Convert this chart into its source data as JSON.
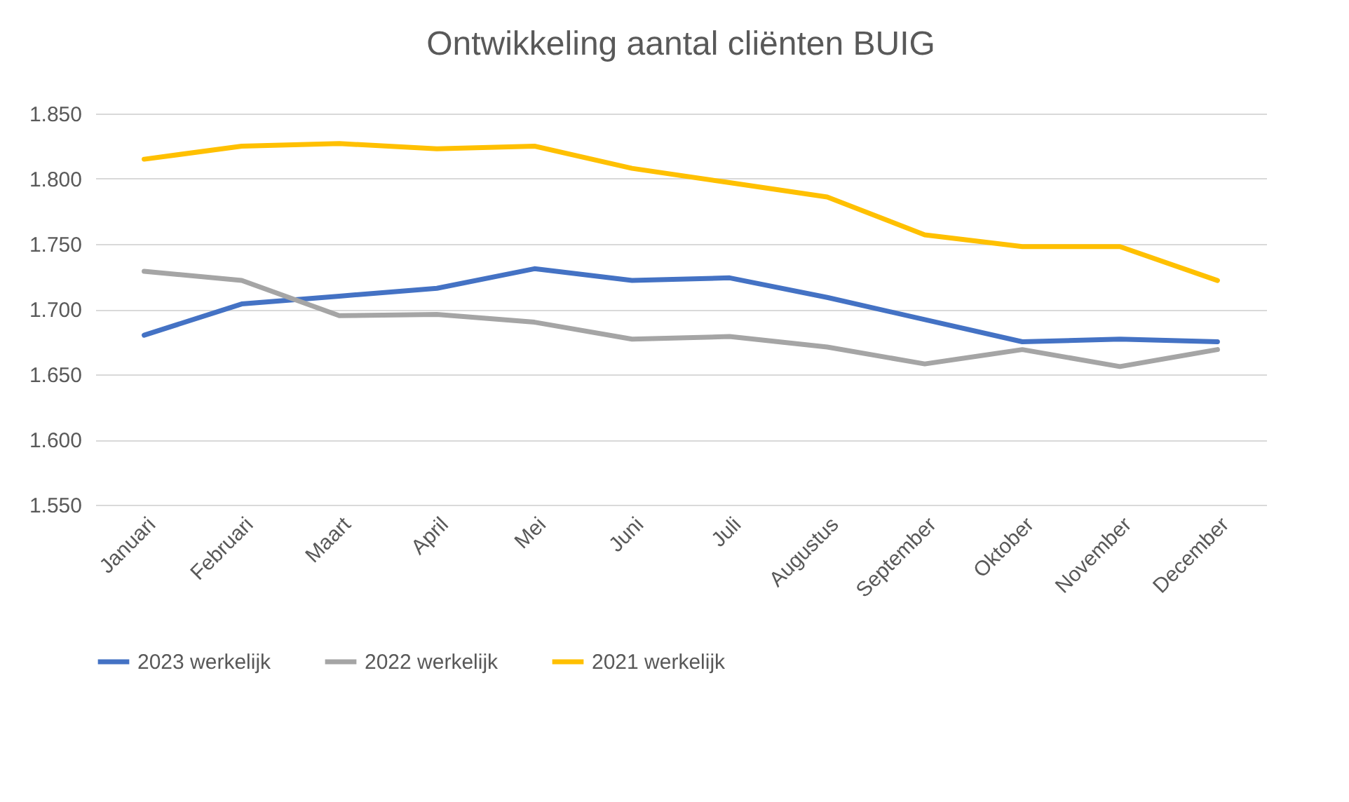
{
  "chart_data": {
    "type": "line",
    "title": "Ontwikkeling aantal cliënten BUIG",
    "categories": [
      "Januari",
      "Februari",
      "Maart",
      "April",
      "Mei",
      "Juni",
      "Juli",
      "Augustus",
      "September",
      "Oktober",
      "November",
      "December"
    ],
    "series": [
      {
        "name": "2023 werkelijk",
        "color": "#4472c4",
        "values": [
          1680,
          1704,
          1710,
          1716,
          1731,
          1722,
          1724,
          1709,
          1692,
          1675,
          1677,
          1675
        ]
      },
      {
        "name": "2022 werkelijk",
        "color": "#a5a5a5",
        "values": [
          1729,
          1722,
          1695,
          1696,
          1690,
          1677,
          1679,
          1671,
          1658,
          1669,
          1656,
          1669
        ]
      },
      {
        "name": "2021 werkelijk",
        "color": "#ffc000",
        "values": [
          1815,
          1825,
          1827,
          1823,
          1825,
          1808,
          1797,
          1786,
          1757,
          1748,
          1748,
          1722
        ]
      }
    ],
    "ylim": [
      1550,
      1850
    ],
    "yticks": [
      {
        "value": 1550,
        "label": "1.550"
      },
      {
        "value": 1600,
        "label": "1.600"
      },
      {
        "value": 1650,
        "label": "1.650"
      },
      {
        "value": 1700,
        "label": "1.700"
      },
      {
        "value": 1750,
        "label": "1.750"
      },
      {
        "value": 1800,
        "label": "1.800"
      },
      {
        "value": 1850,
        "label": "1.850"
      }
    ],
    "grid": "y",
    "legend": "bottom",
    "marker": "none",
    "line_style": "solid"
  }
}
